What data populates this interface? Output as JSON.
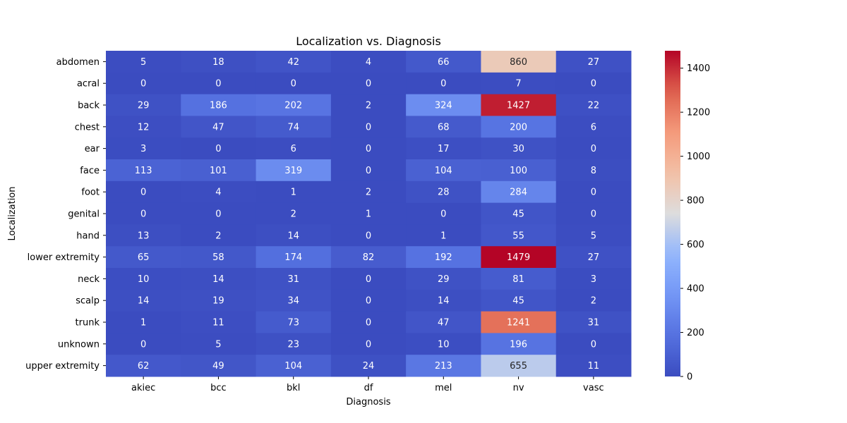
{
  "chart_data": {
    "type": "heatmap",
    "title": "Localization vs. Diagnosis",
    "xlabel": "Diagnosis",
    "ylabel": "Localization",
    "x": [
      "akiec",
      "bcc",
      "bkl",
      "df",
      "mel",
      "nv",
      "vasc"
    ],
    "y": [
      "abdomen",
      "acral",
      "back",
      "chest",
      "ear",
      "face",
      "foot",
      "genital",
      "hand",
      "lower extremity",
      "neck",
      "scalp",
      "trunk",
      "unknown",
      "upper extremity"
    ],
    "values": [
      [
        5,
        18,
        42,
        4,
        66,
        860,
        27
      ],
      [
        0,
        0,
        0,
        0,
        0,
        7,
        0
      ],
      [
        29,
        186,
        202,
        2,
        324,
        1427,
        22
      ],
      [
        12,
        47,
        74,
        0,
        68,
        200,
        6
      ],
      [
        3,
        0,
        6,
        0,
        17,
        30,
        0
      ],
      [
        113,
        101,
        319,
        0,
        104,
        100,
        8
      ],
      [
        0,
        4,
        1,
        2,
        28,
        284,
        0
      ],
      [
        0,
        0,
        2,
        1,
        0,
        45,
        0
      ],
      [
        13,
        2,
        14,
        0,
        1,
        55,
        5
      ],
      [
        65,
        58,
        174,
        82,
        192,
        1479,
        27
      ],
      [
        10,
        14,
        31,
        0,
        29,
        81,
        3
      ],
      [
        14,
        19,
        34,
        0,
        14,
        45,
        2
      ],
      [
        1,
        11,
        73,
        0,
        47,
        1241,
        31
      ],
      [
        0,
        5,
        23,
        0,
        10,
        196,
        0
      ],
      [
        62,
        49,
        104,
        24,
        213,
        655,
        11
      ]
    ],
    "colormap": "coolwarm",
    "vmin": 0,
    "vmax": 1479,
    "colorbar_ticks": [
      0,
      200,
      400,
      600,
      800,
      1000,
      1200,
      1400
    ],
    "annotations": true
  }
}
